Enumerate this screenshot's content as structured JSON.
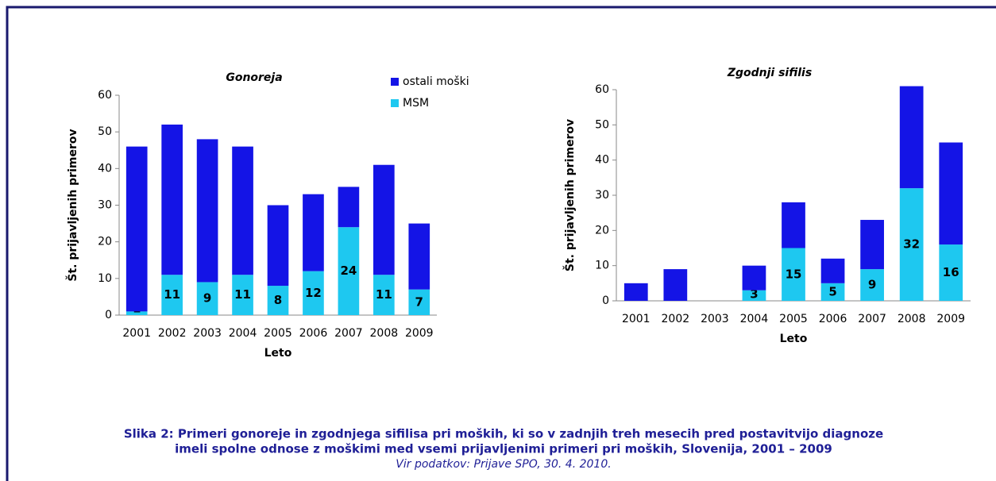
{
  "chart_data": [
    {
      "type": "bar",
      "stacked": true,
      "title": "Gonoreja",
      "xlabel": "Leto",
      "ylabel": "Št. prijavljenih primerov",
      "categories": [
        "2001",
        "2002",
        "2003",
        "2004",
        "2005",
        "2006",
        "2007",
        "2008",
        "2009"
      ],
      "series": [
        {
          "name": "MSM",
          "color": "#1ec8f0",
          "values": [
            1,
            11,
            9,
            11,
            8,
            12,
            24,
            11,
            7
          ],
          "data_labels": true
        },
        {
          "name": "ostali moški",
          "color": "#1414e6",
          "values": [
            45,
            41,
            39,
            35,
            22,
            21,
            11,
            30,
            18
          ]
        }
      ],
      "ylim": [
        0,
        60
      ],
      "yticks": [
        0,
        10,
        20,
        30,
        40,
        50,
        60
      ],
      "legend": "top-right"
    },
    {
      "type": "bar",
      "stacked": true,
      "title": "Zgodnji sifilis",
      "xlabel": "Leto",
      "ylabel": "Št. prijavljenih primerov",
      "categories": [
        "2001",
        "2002",
        "2003",
        "2004",
        "2005",
        "2006",
        "2007",
        "2008",
        "2009"
      ],
      "series": [
        {
          "name": "MSM",
          "color": "#1ec8f0",
          "values": [
            0,
            0,
            0,
            3,
            15,
            5,
            9,
            32,
            16
          ],
          "data_labels": true
        },
        {
          "name": "ostali moški",
          "color": "#1414e6",
          "values": [
            5,
            9,
            0,
            7,
            13,
            7,
            14,
            29,
            29
          ]
        }
      ],
      "ylim": [
        0,
        60
      ],
      "yticks": [
        0,
        10,
        20,
        30,
        40,
        50,
        60
      ]
    }
  ],
  "caption": {
    "lines": [
      "Slika 2: Primeri gonoreje in zgodnjega sifilisa pri moških, ki so v zadnjih treh mesecih pred postavitvijo diagnoze",
      "imeli spolne odnose z moškimi med vsemi prijavljenimi primeri pri moških, Slovenija, 2001 – 2009"
    ],
    "source": "Vir podatkov: Prijave SPO, 30. 4. 2010."
  }
}
